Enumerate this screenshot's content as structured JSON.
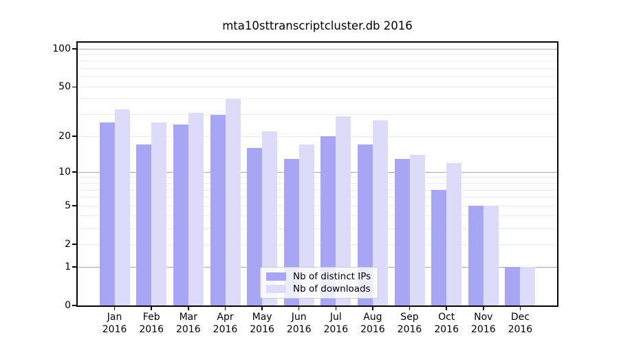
{
  "chart_data": {
    "type": "bar",
    "title": "mta10sttranscriptcluster.db 2016",
    "year": "2016",
    "categories": [
      "Jan",
      "Feb",
      "Mar",
      "Apr",
      "May",
      "Jun",
      "Jul",
      "Aug",
      "Sep",
      "Oct",
      "Nov",
      "Dec"
    ],
    "series": [
      {
        "name": "Nb of distinct IPs",
        "color": "#a6a6f2",
        "values": [
          26,
          17,
          25,
          30,
          16,
          13,
          20,
          17,
          13,
          7,
          5,
          1
        ]
      },
      {
        "name": "Nb of downloads",
        "color": "#dcdcfa",
        "values": [
          33,
          26,
          31,
          40,
          22,
          17,
          29,
          27,
          14,
          12,
          5,
          1
        ]
      }
    ],
    "yscale": "log1p",
    "ylim": [
      0,
      112
    ],
    "y_ticks": [
      100,
      50,
      20,
      10,
      5,
      2,
      1,
      0
    ],
    "gridlines": {
      "major": [
        1,
        10,
        100
      ],
      "minor": [
        2,
        3,
        4,
        5,
        6,
        7,
        8,
        9,
        20,
        30,
        40,
        50,
        60,
        70,
        80,
        90
      ],
      "major_color": "#a8a8a8",
      "minor_color": "#ececec",
      "grid_on": true
    },
    "legend_position": "inside-bottom-center",
    "xlabel": "",
    "ylabel": ""
  }
}
